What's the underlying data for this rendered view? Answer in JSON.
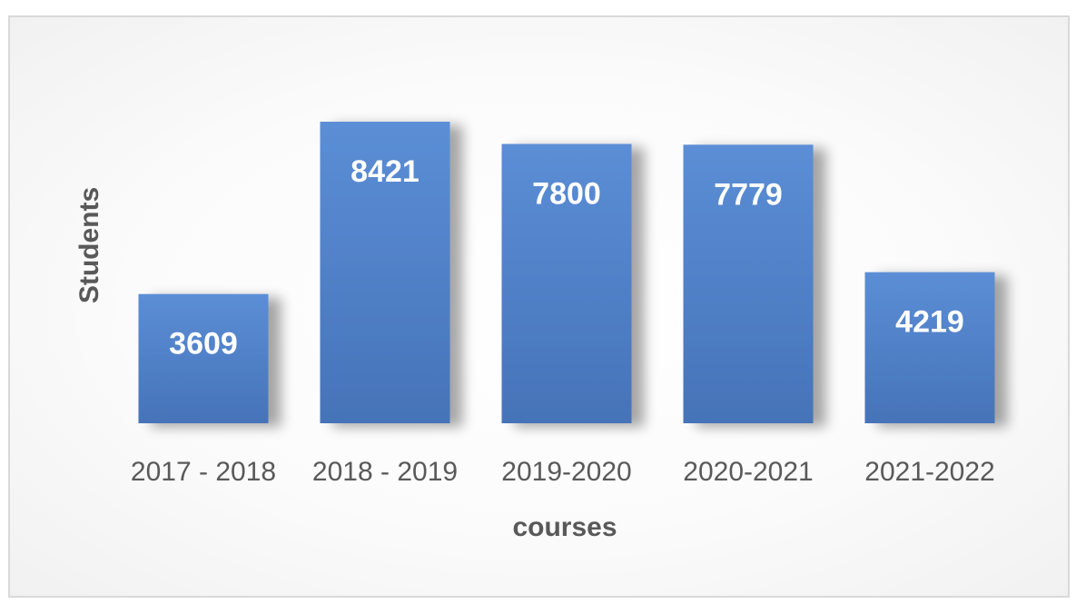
{
  "chart_data": {
    "type": "bar",
    "title": "",
    "xlabel": "courses",
    "ylabel": "Students",
    "categories": [
      "2017 - 2018",
      "2018 - 2019",
      "2019-2020",
      "2020-2021",
      "2021-2022"
    ],
    "values": [
      3609,
      8421,
      7800,
      7779,
      4219
    ],
    "data_labels": [
      "3609",
      "8421",
      "7800",
      "7779",
      "4219"
    ],
    "ylim": [
      0,
      9000
    ],
    "grid": false,
    "legend": "none",
    "bar_color": "#4f81bd",
    "bar_color_light": "#5a8fd4",
    "text_color": "#595959"
  }
}
